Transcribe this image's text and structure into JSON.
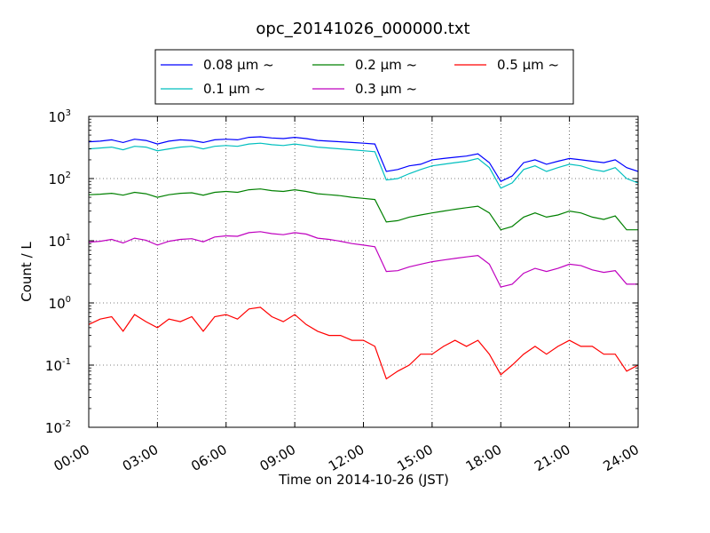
{
  "chart_data": {
    "type": "line",
    "title": "opc_20141026_000000.txt",
    "xlabel": "Time on 2014-10-26 (JST)",
    "ylabel": "Count / L",
    "y_scale": "log",
    "ylim": [
      0.01,
      1000
    ],
    "xlim": [
      "00:00",
      "24:00"
    ],
    "x_ticks": [
      "00:00",
      "03:00",
      "06:00",
      "09:00",
      "12:00",
      "15:00",
      "18:00",
      "21:00",
      "24:00"
    ],
    "y_ticks": [
      {
        "base": "10",
        "exp": "-2",
        "value": 0.01
      },
      {
        "base": "10",
        "exp": "-1",
        "value": 0.1
      },
      {
        "base": "10",
        "exp": "0",
        "value": 1
      },
      {
        "base": "10",
        "exp": "1",
        "value": 10
      },
      {
        "base": "10",
        "exp": "2",
        "value": 100
      },
      {
        "base": "10",
        "exp": "3",
        "value": 1000
      }
    ],
    "grid": true,
    "legend_position": "top-center",
    "x": [
      "00:00",
      "00:30",
      "01:00",
      "01:30",
      "02:00",
      "02:30",
      "03:00",
      "03:30",
      "04:00",
      "04:30",
      "05:00",
      "05:30",
      "06:00",
      "06:30",
      "07:00",
      "07:30",
      "08:00",
      "08:30",
      "09:00",
      "09:30",
      "10:00",
      "10:30",
      "11:00",
      "11:30",
      "12:00",
      "12:30",
      "13:00",
      "13:30",
      "14:00",
      "14:30",
      "15:00",
      "15:30",
      "16:00",
      "16:30",
      "17:00",
      "17:30",
      "18:00",
      "18:30",
      "19:00",
      "19:30",
      "20:00",
      "20:30",
      "21:00",
      "21:30",
      "22:00",
      "22:30",
      "23:00",
      "23:30",
      "24:00"
    ],
    "series": [
      {
        "name": "0.08 μm ~",
        "color": "#0000ff",
        "values": [
          390,
          400,
          420,
          380,
          430,
          410,
          360,
          400,
          420,
          410,
          380,
          420,
          430,
          420,
          460,
          470,
          450,
          440,
          460,
          440,
          410,
          400,
          390,
          380,
          370,
          360,
          130,
          140,
          160,
          170,
          200,
          210,
          220,
          230,
          250,
          180,
          90,
          110,
          180,
          200,
          170,
          190,
          210,
          200,
          190,
          180,
          200,
          150,
          130
        ]
      },
      {
        "name": "0.1 μm ~",
        "color": "#00bfbf",
        "values": [
          300,
          310,
          320,
          290,
          330,
          320,
          280,
          300,
          320,
          330,
          300,
          330,
          340,
          330,
          360,
          370,
          350,
          340,
          360,
          340,
          320,
          310,
          300,
          290,
          280,
          270,
          95,
          100,
          120,
          140,
          160,
          170,
          180,
          190,
          210,
          150,
          70,
          85,
          140,
          160,
          130,
          150,
          170,
          160,
          140,
          130,
          150,
          100,
          85
        ]
      },
      {
        "name": "0.2 μm ~",
        "color": "#008000",
        "values": [
          55,
          56,
          58,
          54,
          60,
          57,
          50,
          55,
          58,
          59,
          54,
          60,
          62,
          60,
          66,
          68,
          64,
          62,
          66,
          62,
          57,
          55,
          53,
          50,
          48,
          46,
          20,
          21,
          24,
          26,
          28,
          30,
          32,
          34,
          36,
          28,
          15,
          17,
          24,
          28,
          24,
          26,
          30,
          28,
          24,
          22,
          25,
          15,
          15
        ]
      },
      {
        "name": "0.3 μm ~",
        "color": "#bf00bf",
        "values": [
          9.5,
          9.8,
          10.5,
          9.2,
          11,
          10.2,
          8.5,
          9.8,
          10.5,
          10.8,
          9.6,
          11.5,
          12,
          11.8,
          13.5,
          14,
          13,
          12.5,
          13.5,
          12.8,
          11,
          10.5,
          9.8,
          9,
          8.5,
          8,
          3.2,
          3.3,
          3.8,
          4.2,
          4.6,
          4.9,
          5.2,
          5.5,
          5.8,
          4.2,
          1.8,
          2,
          3,
          3.6,
          3.2,
          3.6,
          4.2,
          4,
          3.4,
          3.1,
          3.3,
          2,
          2
        ]
      },
      {
        "name": "0.5 μm ~",
        "color": "#ff0000",
        "values": [
          0.45,
          0.55,
          0.6,
          0.35,
          0.65,
          0.5,
          0.4,
          0.55,
          0.5,
          0.6,
          0.35,
          0.6,
          0.65,
          0.55,
          0.8,
          0.85,
          0.6,
          0.5,
          0.65,
          0.45,
          0.35,
          0.3,
          0.3,
          0.25,
          0.25,
          0.2,
          0.06,
          0.08,
          0.1,
          0.15,
          0.15,
          0.2,
          0.25,
          0.2,
          0.25,
          0.15,
          0.07,
          0.1,
          0.15,
          0.2,
          0.15,
          0.2,
          0.25,
          0.2,
          0.2,
          0.15,
          0.15,
          0.08,
          0.1
        ]
      }
    ]
  }
}
